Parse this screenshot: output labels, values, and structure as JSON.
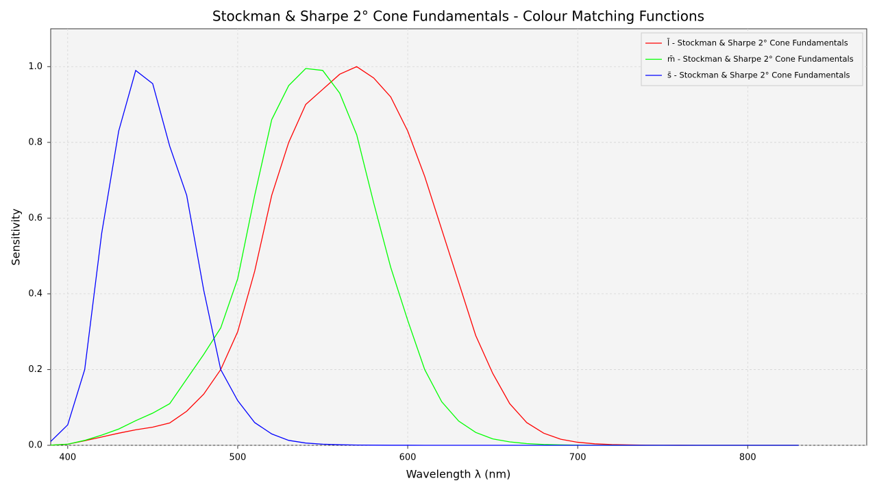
{
  "chart_data": {
    "type": "line",
    "title": "Stockman & Sharpe 2° Cone Fundamentals - Colour Matching Functions",
    "x_label": "Wavelength λ (nm)",
    "y_label": "Sensitivity",
    "x": [
      390,
      400,
      410,
      420,
      430,
      440,
      450,
      460,
      470,
      480,
      490,
      500,
      510,
      520,
      530,
      540,
      550,
      560,
      570,
      580,
      590,
      600,
      610,
      620,
      630,
      640,
      650,
      660,
      670,
      680,
      690,
      700,
      710,
      720,
      730,
      740,
      750,
      760,
      770,
      780,
      790,
      800,
      810,
      820,
      830
    ],
    "series": [
      {
        "name": "l̄ - Stockman & Sharpe 2° Cone Fundamentals",
        "color": "#ff0000",
        "values": [
          0.0004,
          0.003,
          0.012,
          0.022,
          0.032,
          0.041,
          0.048,
          0.059,
          0.09,
          0.135,
          0.2,
          0.3,
          0.46,
          0.66,
          0.8,
          0.9,
          0.94,
          0.98,
          1.0,
          0.97,
          0.92,
          0.83,
          0.71,
          0.57,
          0.43,
          0.29,
          0.19,
          0.11,
          0.06,
          0.032,
          0.016,
          0.008,
          0.004,
          0.002,
          0.001,
          0.0004,
          0.0002,
          0.0001,
          0,
          0,
          0,
          0,
          0,
          0,
          0
        ]
      },
      {
        "name": "m̄ - Stockman & Sharpe 2° Cone Fundamentals",
        "color": "#00ff00",
        "values": [
          0.0004,
          0.003,
          0.013,
          0.027,
          0.043,
          0.065,
          0.085,
          0.11,
          0.175,
          0.24,
          0.31,
          0.44,
          0.66,
          0.86,
          0.95,
          0.995,
          0.99,
          0.93,
          0.82,
          0.64,
          0.47,
          0.33,
          0.2,
          0.115,
          0.064,
          0.034,
          0.017,
          0.009,
          0.0045,
          0.0022,
          0.001,
          0.0005,
          0.0002,
          0.0001,
          0,
          0,
          0,
          0,
          0,
          0,
          0,
          0,
          0,
          0,
          0
        ]
      },
      {
        "name": "s̄ - Stockman & Sharpe 2° Cone Fundamentals",
        "color": "#0000ff",
        "values": [
          0.01,
          0.054,
          0.2,
          0.56,
          0.83,
          0.99,
          0.955,
          0.79,
          0.66,
          0.41,
          0.2,
          0.118,
          0.06,
          0.03,
          0.013,
          0.006,
          0.003,
          0.0015,
          0.0007,
          0.0003,
          0.0001,
          0.0001,
          0,
          0,
          0,
          0,
          0,
          0,
          0,
          0,
          0,
          0,
          0,
          0,
          0,
          0,
          0,
          0,
          0,
          0,
          0,
          0,
          0,
          0,
          0
        ]
      }
    ],
    "xlim": [
      390,
      870
    ],
    "ylim": [
      0,
      1.1
    ],
    "xticks": [
      400,
      500,
      600,
      700,
      800
    ],
    "yticks": [
      {
        "value": 0,
        "label": "0.0"
      },
      0.2,
      0.4,
      0.6,
      0.8,
      {
        "value": 1,
        "label": "1.0"
      }
    ],
    "grid": true,
    "legend": "upper right"
  }
}
